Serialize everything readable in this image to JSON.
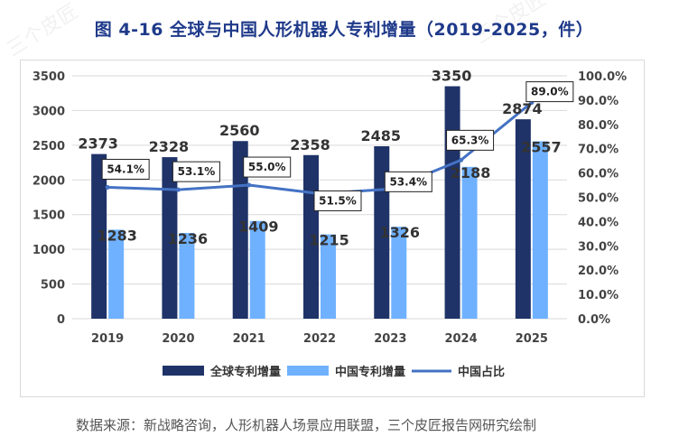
{
  "watermark_text": "三个皮匠",
  "chart_data": {
    "type": "bar",
    "title": "图 4-16  全球与中国人形机器人专利增量（2019-2025，件）",
    "categories": [
      "2019",
      "2020",
      "2021",
      "2022",
      "2023",
      "2024",
      "2025"
    ],
    "series": [
      {
        "name": "全球专利增量",
        "kind": "bar",
        "axis": "left",
        "color": "#1f3368",
        "values": [
          2373,
          2328,
          2560,
          2358,
          2485,
          3350,
          2874
        ]
      },
      {
        "name": "中国专利增量",
        "kind": "bar",
        "axis": "left",
        "color": "#6fb1ff",
        "values": [
          1283,
          1236,
          1409,
          1215,
          1326,
          2188,
          2557
        ]
      },
      {
        "name": "中国占比",
        "kind": "line",
        "axis": "right",
        "color": "#4472c4",
        "values": [
          54.1,
          53.1,
          55.0,
          51.5,
          53.4,
          65.3,
          89.0
        ]
      }
    ],
    "left_axis": {
      "min": 0,
      "max": 3500,
      "step": 500,
      "ticks": [
        "0",
        "500",
        "1000",
        "1500",
        "2000",
        "2500",
        "3000",
        "3500"
      ]
    },
    "right_axis": {
      "min": 0,
      "max": 100,
      "step": 10,
      "ticks": [
        "0.0%",
        "10.0%",
        "20.0%",
        "30.0%",
        "40.0%",
        "50.0%",
        "60.0%",
        "70.0%",
        "80.0%",
        "90.0%",
        "100.0%"
      ]
    },
    "pct_labels": [
      "54.1%",
      "53.1%",
      "55.0%",
      "51.5%",
      "53.4%",
      "65.3%",
      "89.0%"
    ],
    "grid": true,
    "legend_position": "bottom"
  },
  "source": "数据来源：新战略咨询，人形机器人场景应用联盟，三个皮匠报告网研究绘制"
}
